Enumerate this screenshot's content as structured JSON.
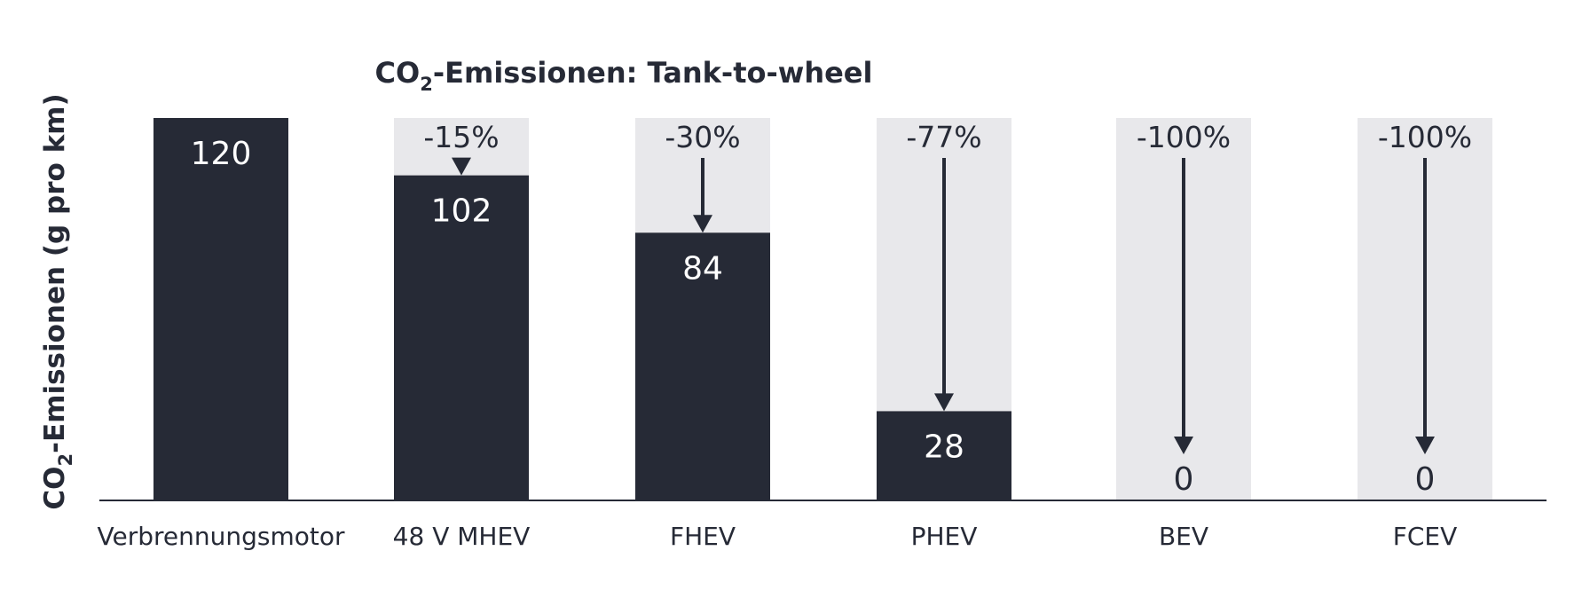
{
  "chart_data": {
    "type": "bar",
    "title": {
      "main": "CO",
      "sub": "2",
      "rest": "-Emissionen: Tank-to-wheel"
    },
    "ylabel": {
      "main": "CO",
      "sub": "2",
      "rest": "-Emissionen (g pro km)"
    },
    "xlabel": "",
    "categories": [
      "Verbrennungsmotor",
      "48 V MHEV",
      "FHEV",
      "PHEV",
      "BEV",
      "FCEV"
    ],
    "values": [
      120,
      102,
      84,
      28,
      0,
      0
    ],
    "value_labels": [
      "120",
      "102",
      "84",
      "28",
      "0",
      "0"
    ],
    "reduction_labels": [
      "",
      "-15%",
      "-30%",
      "-77%",
      "-100%",
      "-100%"
    ],
    "reference_value": 120,
    "ylim": [
      0,
      120
    ],
    "grid": false,
    "legend": "none",
    "colors": {
      "bar": "#262a36",
      "reference": "#e8e8eb",
      "text": "#262a36",
      "axis": "#262a36",
      "bar_label": "#ffffff"
    }
  }
}
